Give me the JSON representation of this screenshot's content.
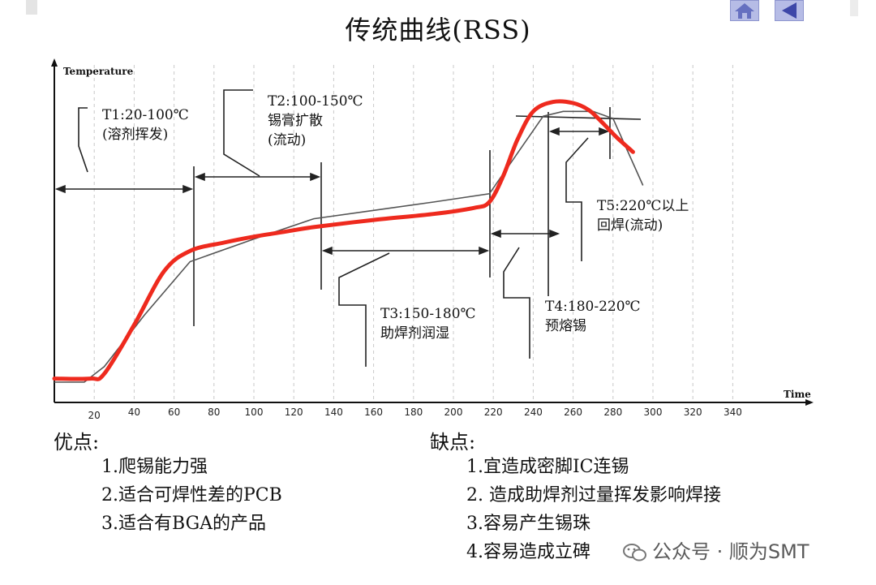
{
  "title": "传统曲线(RSS)",
  "nav": {
    "home_icon": "home-icon",
    "back_icon": "back-arrow-icon"
  },
  "chart_data": {
    "type": "line",
    "ylabel": "Temperature",
    "xlabel": "Time",
    "x_ticks": [
      20,
      40,
      60,
      80,
      100,
      120,
      140,
      160,
      180,
      200,
      220,
      240,
      260,
      280,
      300,
      320,
      340
    ],
    "grid": "vertical dashed",
    "series": [
      {
        "style": "red thick",
        "color": "#ee2a1e",
        "x": [
          0,
          18,
          25,
          40,
          55,
          68,
          85,
          100,
          115,
          130,
          160,
          190,
          210,
          218,
          225,
          232,
          240,
          250,
          260,
          268,
          275,
          282,
          290
        ],
        "y": [
          20,
          20,
          24,
          65,
          110,
          127,
          134,
          139,
          143,
          147,
          153,
          158,
          163,
          168,
          190,
          220,
          244,
          252,
          251,
          245,
          234,
          222,
          210
        ]
      },
      {
        "style": "gray thin",
        "color": "#555555",
        "x": [
          0,
          15,
          25,
          45,
          68,
          100,
          130,
          160,
          190,
          218,
          245,
          255,
          270,
          280,
          295
        ],
        "y": [
          17,
          17,
          30,
          73,
          118,
          137,
          154,
          161,
          168,
          175,
          240,
          244,
          244,
          238,
          182
        ]
      }
    ],
    "annotations": [
      {
        "lines": [
          "T1:20-100℃",
          "(溶剂挥发)"
        ]
      },
      {
        "lines": [
          "T2:100-150℃",
          "锡膏扩散",
          "(流动)"
        ]
      },
      {
        "lines": [
          "T3:150-180℃",
          "助焊剂润湿"
        ]
      },
      {
        "lines": [
          "T4:180-220℃",
          "预熔锡"
        ]
      },
      {
        "lines": [
          "T5:220℃以上",
          "回焊(流动)"
        ]
      }
    ]
  },
  "advantages": {
    "title": "优点:",
    "items": [
      "1.爬锡能力强",
      "2.适合可焊性差的PCB",
      "3.适合有BGA的产品"
    ]
  },
  "disadvantages": {
    "title": "缺点:",
    "items": [
      "1.宜造成密脚IC连锡",
      "2. 造成助焊剂过量挥发影响焊接",
      "3.容易产生锡珠",
      "4.容易造成立碑"
    ]
  },
  "watermark": {
    "icon": "wechat-icon",
    "text": "公众号 · 顺为SMT"
  }
}
